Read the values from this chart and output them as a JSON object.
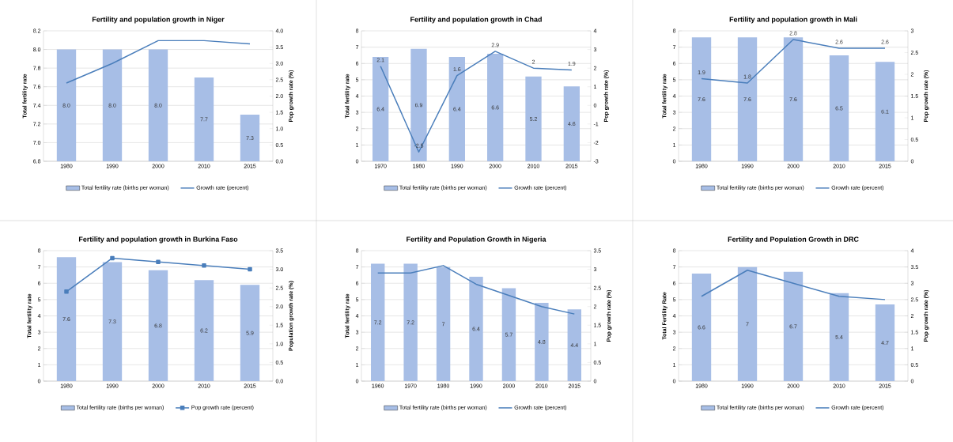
{
  "chart_data": [
    {
      "type": "bar",
      "title": "Fertility and population growth in Niger",
      "ylabel": "Total fertility rate",
      "y2label": "Pop growth rate (%)",
      "categories": [
        "1980",
        "1990",
        "2000",
        "2010",
        "2015"
      ],
      "ylim": [
        6.8,
        8.2
      ],
      "yticks": [
        6.8,
        {
          "value": 7,
          "label": "7.0"
        },
        7.2,
        7.4,
        7.6,
        7.8,
        {
          "value": 8,
          "label": "8.0"
        },
        8.2
      ],
      "y2lim": [
        0,
        4
      ],
      "y2ticks": [
        {
          "value": 0,
          "label": "0.0"
        },
        0.5,
        {
          "value": 1,
          "label": "1.0"
        },
        1.5,
        {
          "value": 2,
          "label": "2.0"
        },
        2.5,
        {
          "value": 3,
          "label": "3.0"
        },
        3.5,
        {
          "value": 4,
          "label": "4.0"
        }
      ],
      "grid": "y",
      "legend": "bottom",
      "series": [
        {
          "name": "Total fertility rate (births per woman)",
          "color": "#a7bee6",
          "values": [
            8,
            8,
            8,
            7.7,
            7.3
          ],
          "value_labels": [
            "8.0",
            "8.0",
            "8.0",
            "7.7",
            "7.3"
          ]
        },
        {
          "name": "Growth rate (percent)",
          "type": "line",
          "axis": "y2",
          "color": "#4a7ebb",
          "values": [
            2.4,
            3.0,
            3.7,
            3.7,
            3.6
          ]
        }
      ]
    },
    {
      "type": "bar",
      "title": "Fertility and population growth in Chad",
      "ylabel": "Total fertility rate",
      "y2label": "Pop growth rate (%)",
      "categories": [
        "1970",
        "1980",
        "1990",
        "2000",
        "2010",
        "2015"
      ],
      "ylim": [
        0,
        8
      ],
      "yticks": [
        0,
        1,
        2,
        3,
        4,
        5,
        6,
        7,
        8
      ],
      "y2lim": [
        -3,
        4
      ],
      "y2ticks": [
        -3,
        -2,
        -1,
        0,
        1,
        2,
        3,
        4
      ],
      "grid": "y",
      "legend": "bottom",
      "series": [
        {
          "name": "Total fertility rate (births per woman)",
          "color": "#a7bee6",
          "values": [
            6.4,
            6.9,
            6.4,
            6.6,
            5.2,
            4.6
          ],
          "value_labels": [
            "6.4",
            "6.9",
            "6.4",
            "6.6",
            "5.2",
            "4.6"
          ]
        },
        {
          "name": "Growth rate (percent)",
          "type": "line",
          "axis": "y2",
          "color": "#4a7ebb",
          "values": [
            2.1,
            -2.5,
            1.6,
            2.9,
            2,
            1.9
          ],
          "value_labels": [
            "2.1",
            "-2.5",
            "1.6",
            "2.9",
            "2",
            "1.9"
          ]
        }
      ]
    },
    {
      "type": "bar",
      "title": "Fertility and population growth in Mali",
      "ylabel": "Total fertility rate",
      "y2label": "Pop growth rate (%)",
      "categories": [
        "1980",
        "1990",
        "2000",
        "2010",
        "2015"
      ],
      "ylim": [
        0,
        8
      ],
      "yticks": [
        0,
        1,
        2,
        3,
        4,
        5,
        6,
        7,
        8
      ],
      "y2lim": [
        0,
        3
      ],
      "y2ticks": [
        0,
        0.5,
        1,
        1.5,
        2,
        2.5,
        3
      ],
      "grid": "y",
      "legend": "bottom",
      "series": [
        {
          "name": "Total fertility rate (births per woman)",
          "color": "#a7bee6",
          "values": [
            7.6,
            7.6,
            7.6,
            6.5,
            6.1
          ],
          "value_labels": [
            "7.6",
            "7.6",
            "7.6",
            "6.5",
            "6.1"
          ]
        },
        {
          "name": "Growth rate (percent)",
          "type": "line",
          "axis": "y2",
          "color": "#4a7ebb",
          "values": [
            1.9,
            1.8,
            2.8,
            2.6,
            2.6
          ],
          "value_labels": [
            "1.9",
            "1.8",
            "2.8",
            "2.6",
            "2.6"
          ]
        }
      ]
    },
    {
      "type": "bar",
      "title": "Fertility and population growth in Burkina Faso",
      "ylabel": "Total fertility rate",
      "y2label": "Population growth rate (%)",
      "categories": [
        "1980",
        "1990",
        "2000",
        "2010",
        "2015"
      ],
      "ylim": [
        0,
        8
      ],
      "yticks": [
        0,
        1,
        2,
        3,
        4,
        5,
        6,
        7,
        8
      ],
      "y2lim": [
        0,
        3.5
      ],
      "y2ticks": [
        {
          "value": 0,
          "label": "0.0"
        },
        0.5,
        {
          "value": 1,
          "label": "1.0"
        },
        1.5,
        {
          "value": 2,
          "label": "2.0"
        },
        2.5,
        {
          "value": 3,
          "label": "3.0"
        },
        3.5
      ],
      "grid": "y",
      "legend": "bottom",
      "series": [
        {
          "name": "Total fertility rate (births per woman)",
          "color": "#a7bee6",
          "values": [
            7.6,
            7.3,
            6.8,
            6.2,
            5.9
          ],
          "value_labels": [
            "7.6",
            "7.3",
            "6.8",
            "6.2",
            "5.9"
          ]
        },
        {
          "name": "Pop growth rate (percent)",
          "type": "line",
          "axis": "y2",
          "color": "#4a7ebb",
          "marker": "square",
          "values": [
            2.4,
            3.3,
            3.2,
            3.1,
            3.0
          ]
        }
      ]
    },
    {
      "type": "bar",
      "title": "Fertility and Population Growth in Nigeria",
      "ylabel": "Total fertility rate",
      "y2label": "Pop growth rate (%)",
      "categories": [
        "1960",
        "1970",
        "1980",
        "1990",
        "2000",
        "2010",
        "2015"
      ],
      "ylim": [
        0,
        8
      ],
      "yticks": [
        0,
        1,
        2,
        3,
        4,
        5,
        6,
        7,
        8
      ],
      "y2lim": [
        0,
        3.5
      ],
      "y2ticks": [
        0,
        0.5,
        1,
        1.5,
        2,
        2.5,
        3,
        3.5
      ],
      "grid": "y",
      "legend": "bottom",
      "series": [
        {
          "name": "Total fertility rate (births per woman)",
          "color": "#a7bee6",
          "values": [
            7.2,
            7.2,
            7,
            6.4,
            5.7,
            4.8,
            4.4
          ],
          "value_labels": [
            "7.2",
            "7.2",
            "7",
            "6.4",
            "5.7",
            "4.8",
            "4.4"
          ]
        },
        {
          "name": "Growth rate (percent)",
          "type": "line",
          "axis": "y2",
          "color": "#4a7ebb",
          "values": [
            2.9,
            2.9,
            3.1,
            2.6,
            2.3,
            2.0,
            1.8
          ]
        }
      ]
    },
    {
      "type": "bar",
      "title": "Fertility and Population Growth in DRC",
      "ylabel": "Total Fertility Rate",
      "y2label": "Pop growth rate (%)",
      "categories": [
        "1980",
        "1990",
        "2000",
        "2010",
        "2015"
      ],
      "ylim": [
        0,
        8
      ],
      "yticks": [
        0,
        1,
        2,
        3,
        4,
        5,
        6,
        7,
        8
      ],
      "y2lim": [
        0,
        4
      ],
      "y2ticks": [
        0,
        0.5,
        1,
        1.5,
        2,
        2.5,
        3,
        3.5,
        4
      ],
      "grid": "y",
      "legend": "bottom",
      "series": [
        {
          "name": "Total fertility rate (births per woman)",
          "color": "#a7bee6",
          "values": [
            6.6,
            7,
            6.7,
            5.4,
            4.7
          ],
          "value_labels": [
            "6.6",
            "7",
            "6.7",
            "5.4",
            "4.7"
          ]
        },
        {
          "name": "Growth rate (percent)",
          "type": "line",
          "axis": "y2",
          "color": "#4a7ebb",
          "values": [
            2.6,
            3.4,
            3.0,
            2.6,
            2.5
          ]
        }
      ]
    }
  ]
}
